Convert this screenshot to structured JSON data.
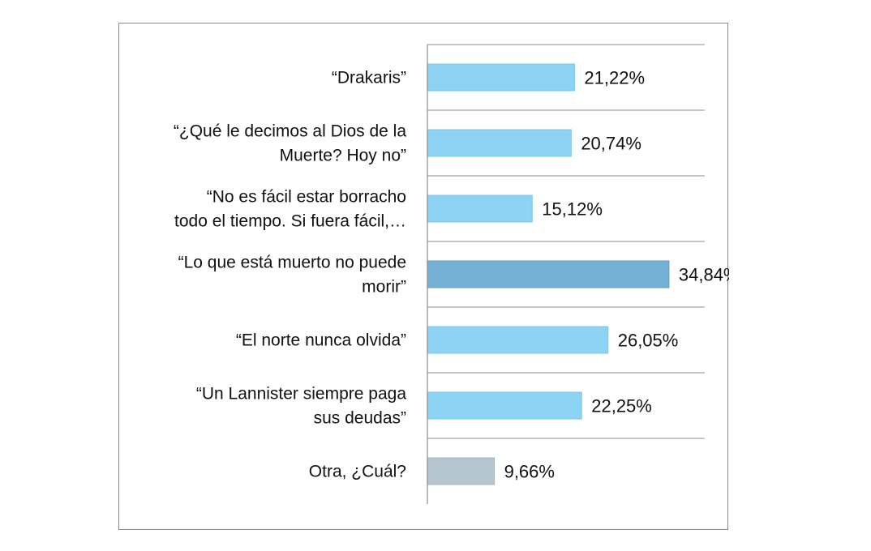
{
  "chart_data": {
    "type": "bar",
    "orientation": "horizontal",
    "title": "",
    "xlabel": "",
    "ylabel": "",
    "xlim": [
      0,
      40
    ],
    "grid": true,
    "categories": [
      [
        "“Drakaris”"
      ],
      [
        "“¿Qué le decimos al Dios de la",
        "Muerte? Hoy no”"
      ],
      [
        "“No es fácil estar borracho",
        "todo el tiempo. Si fuera fácil,…"
      ],
      [
        "“Lo que está muerto no puede",
        "morir”"
      ],
      [
        "“El norte nunca olvida”"
      ],
      [
        "“Un Lannister siempre paga",
        "sus deudas”"
      ],
      [
        "Otra, ¿Cuál?"
      ]
    ],
    "values": [
      21.22,
      20.74,
      15.12,
      34.84,
      26.05,
      22.25,
      9.66
    ],
    "value_labels": [
      "21,22%",
      "20,74%",
      "15,12%",
      "34,84%",
      "26,05%",
      "22,25%",
      "9,66%"
    ],
    "bar_colors": [
      "#8dd3f4",
      "#8dd3f4",
      "#8dd3f4",
      "#74b0d4",
      "#8dd3f4",
      "#8dd3f4",
      "#b6c6d0"
    ],
    "bar_edge_colors": [
      "#7cc7ea",
      "#7cc7ea",
      "#7cc7ea",
      "#5f9cc3",
      "#7cc7ea",
      "#7cc7ea",
      "#a3b5c0"
    ]
  }
}
